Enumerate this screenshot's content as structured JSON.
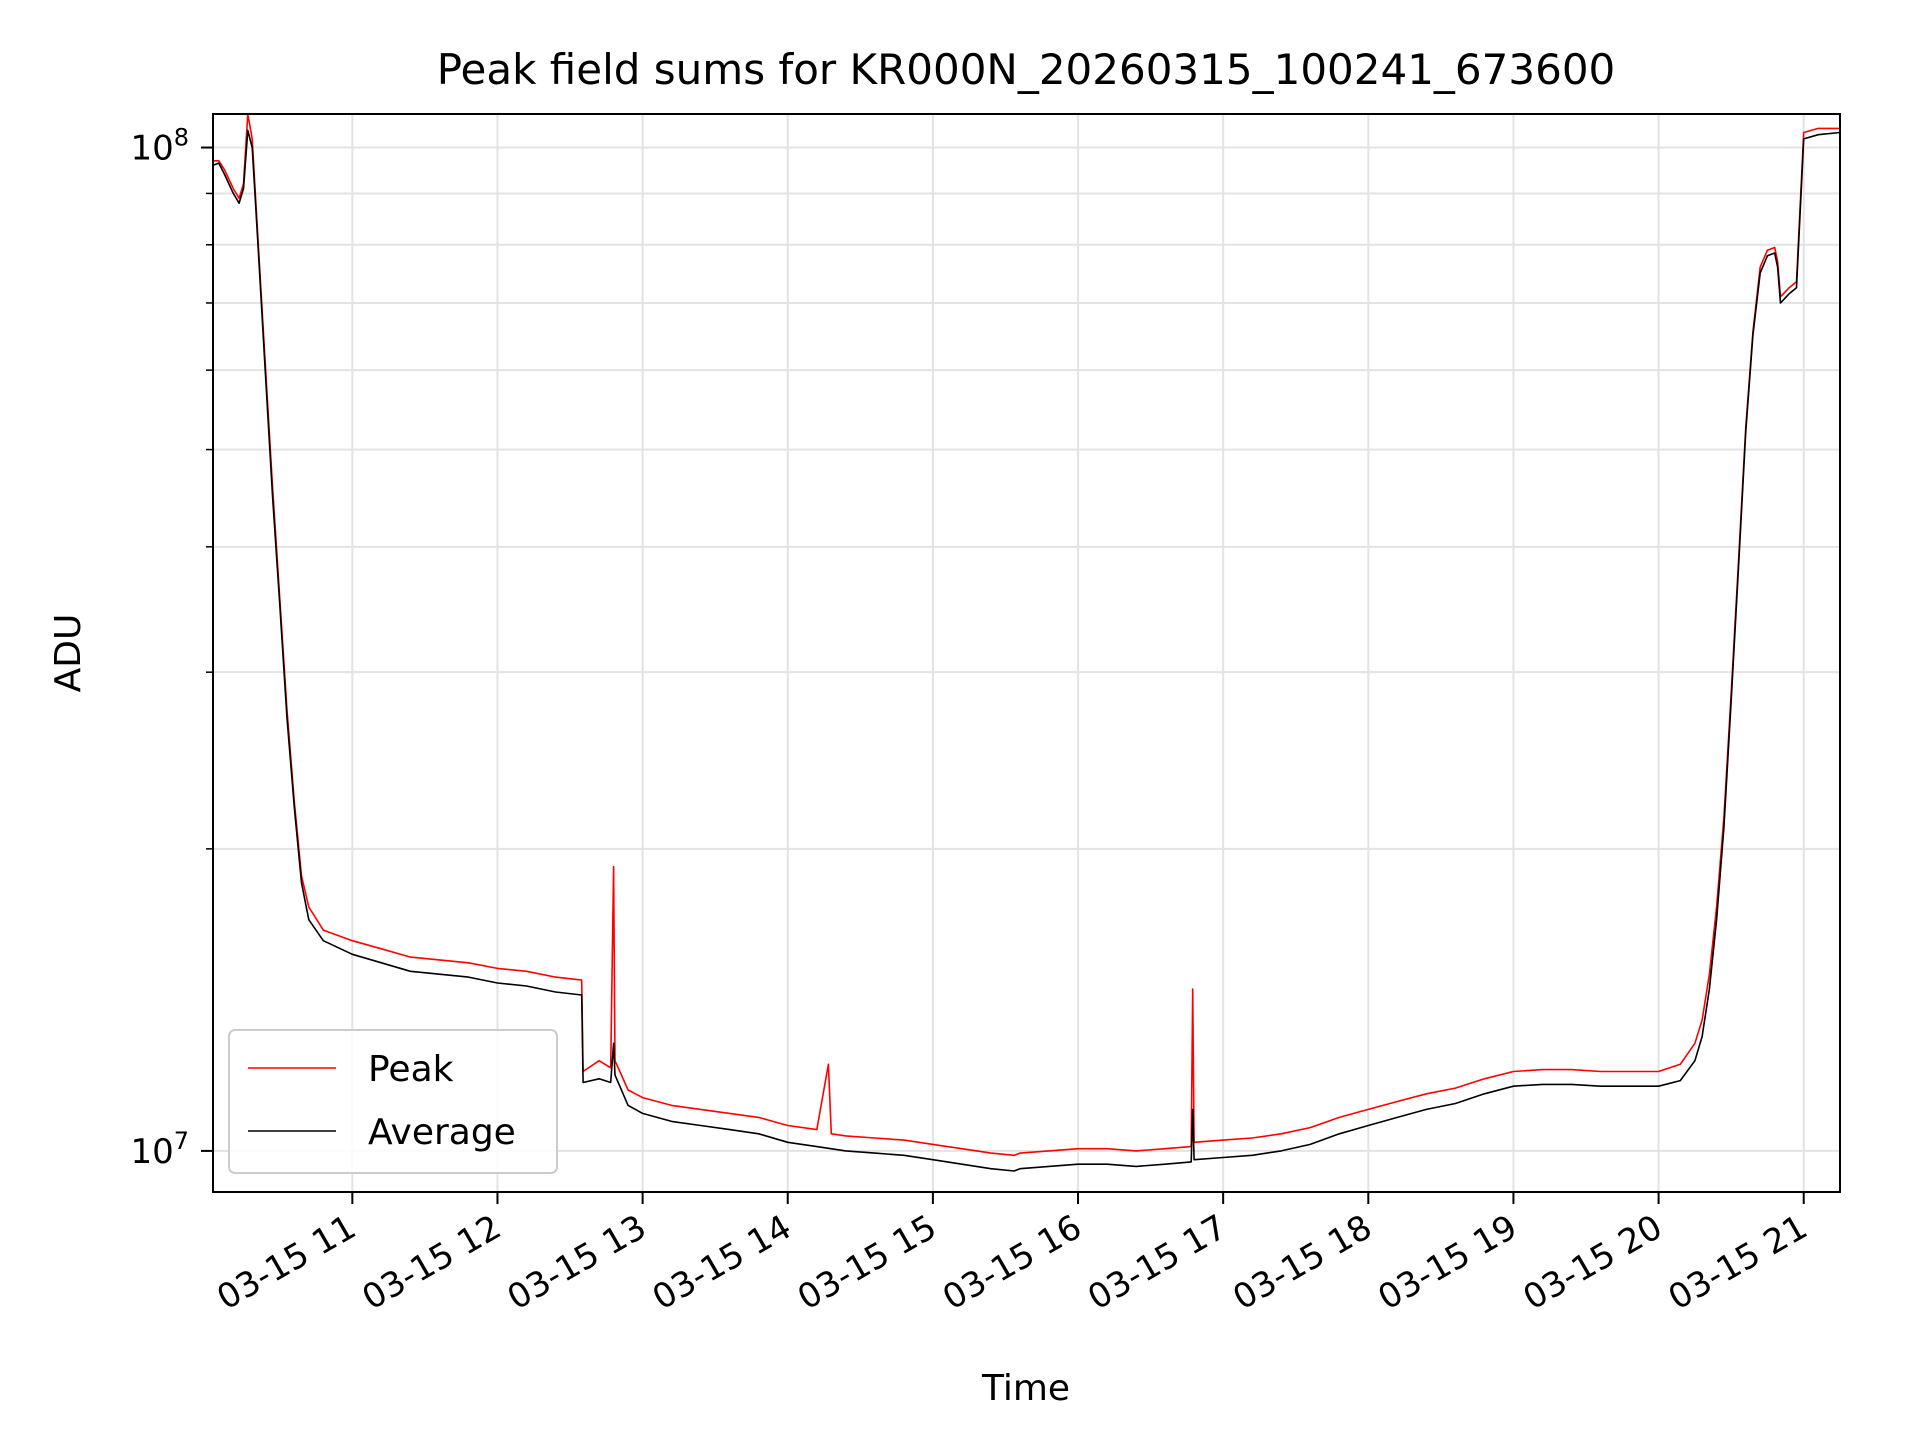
{
  "chart_data": {
    "type": "line",
    "title": "Peak field sums for KR000N_20260315_100241_673600",
    "xlabel": "Time",
    "ylabel": "ADU",
    "yscale": "log",
    "grid": true,
    "legend_position": "lower-left",
    "x_unit": "hours since 03-15 00:00",
    "xlim": [
      10.04,
      21.25
    ],
    "ylim": [
      9100000,
      108000000
    ],
    "x_ticks": [
      {
        "value": 11,
        "label": "03-15 11"
      },
      {
        "value": 12,
        "label": "03-15 12"
      },
      {
        "value": 13,
        "label": "03-15 13"
      },
      {
        "value": 14,
        "label": "03-15 14"
      },
      {
        "value": 15,
        "label": "03-15 15"
      },
      {
        "value": 16,
        "label": "03-15 16"
      },
      {
        "value": 17,
        "label": "03-15 17"
      },
      {
        "value": 18,
        "label": "03-15 18"
      },
      {
        "value": 19,
        "label": "03-15 19"
      },
      {
        "value": 20,
        "label": "03-15 20"
      },
      {
        "value": 21,
        "label": "03-15 21"
      }
    ],
    "y_ticks": [
      {
        "value": 10000000,
        "base": "10",
        "exp": "7"
      },
      {
        "value": 100000000,
        "base": "10",
        "exp": "8"
      }
    ],
    "y_minor_ticks": [
      20000000,
      30000000,
      40000000,
      50000000,
      60000000,
      70000000,
      80000000,
      90000000
    ],
    "series": [
      {
        "name": "Average",
        "color": "#000000",
        "points": [
          [
            10.04,
            96000000
          ],
          [
            10.08,
            96500000
          ],
          [
            10.12,
            94000000
          ],
          [
            10.18,
            90000000
          ],
          [
            10.22,
            88000000
          ],
          [
            10.25,
            91000000
          ],
          [
            10.28,
            104000000
          ],
          [
            10.31,
            100000000
          ],
          [
            10.35,
            80000000
          ],
          [
            10.4,
            60000000
          ],
          [
            10.45,
            45000000
          ],
          [
            10.5,
            35000000
          ],
          [
            10.55,
            27000000
          ],
          [
            10.6,
            22000000
          ],
          [
            10.65,
            18500000
          ],
          [
            10.7,
            17000000
          ],
          [
            10.8,
            16200000
          ],
          [
            11.0,
            15700000
          ],
          [
            11.2,
            15400000
          ],
          [
            11.4,
            15100000
          ],
          [
            11.6,
            15000000
          ],
          [
            11.8,
            14900000
          ],
          [
            12.0,
            14700000
          ],
          [
            12.2,
            14600000
          ],
          [
            12.4,
            14400000
          ],
          [
            12.58,
            14300000
          ],
          [
            12.59,
            11700000
          ],
          [
            12.7,
            11800000
          ],
          [
            12.78,
            11700000
          ],
          [
            12.8,
            12800000
          ],
          [
            12.81,
            11900000
          ],
          [
            12.9,
            11100000
          ],
          [
            13.0,
            10900000
          ],
          [
            13.2,
            10700000
          ],
          [
            13.4,
            10600000
          ],
          [
            13.6,
            10500000
          ],
          [
            13.8,
            10400000
          ],
          [
            14.0,
            10200000
          ],
          [
            14.2,
            10100000
          ],
          [
            14.4,
            10000000
          ],
          [
            14.6,
            9950000
          ],
          [
            14.8,
            9900000
          ],
          [
            15.0,
            9800000
          ],
          [
            15.2,
            9700000
          ],
          [
            15.4,
            9600000
          ],
          [
            15.56,
            9550000
          ],
          [
            15.6,
            9600000
          ],
          [
            15.8,
            9650000
          ],
          [
            16.0,
            9700000
          ],
          [
            16.2,
            9700000
          ],
          [
            16.4,
            9650000
          ],
          [
            16.6,
            9700000
          ],
          [
            16.78,
            9750000
          ],
          [
            16.79,
            11000000
          ],
          [
            16.8,
            9800000
          ],
          [
            17.0,
            9850000
          ],
          [
            17.2,
            9900000
          ],
          [
            17.4,
            10000000
          ],
          [
            17.6,
            10150000
          ],
          [
            17.8,
            10400000
          ],
          [
            18.0,
            10600000
          ],
          [
            18.2,
            10800000
          ],
          [
            18.4,
            11000000
          ],
          [
            18.6,
            11150000
          ],
          [
            18.8,
            11400000
          ],
          [
            19.0,
            11600000
          ],
          [
            19.2,
            11650000
          ],
          [
            19.4,
            11650000
          ],
          [
            19.6,
            11600000
          ],
          [
            19.8,
            11600000
          ],
          [
            20.0,
            11600000
          ],
          [
            20.15,
            11750000
          ],
          [
            20.25,
            12300000
          ],
          [
            20.3,
            13000000
          ],
          [
            20.35,
            14500000
          ],
          [
            20.4,
            17000000
          ],
          [
            20.45,
            21000000
          ],
          [
            20.5,
            28000000
          ],
          [
            20.55,
            38000000
          ],
          [
            20.6,
            52000000
          ],
          [
            20.65,
            65000000
          ],
          [
            20.7,
            75000000
          ],
          [
            20.75,
            78000000
          ],
          [
            20.8,
            78500000
          ],
          [
            20.82,
            76000000
          ],
          [
            20.84,
            70000000
          ],
          [
            20.9,
            71500000
          ],
          [
            20.95,
            72500000
          ],
          [
            21.0,
            102000000
          ],
          [
            21.1,
            103000000
          ],
          [
            21.25,
            103500000
          ]
        ]
      },
      {
        "name": "Peak",
        "color": "#ff0000",
        "points": [
          [
            10.04,
            97000000
          ],
          [
            10.08,
            97000000
          ],
          [
            10.12,
            95000000
          ],
          [
            10.18,
            91000000
          ],
          [
            10.22,
            89000000
          ],
          [
            10.25,
            92000000
          ],
          [
            10.28,
            108000000
          ],
          [
            10.31,
            102000000
          ],
          [
            10.35,
            81000000
          ],
          [
            10.4,
            61000000
          ],
          [
            10.45,
            46000000
          ],
          [
            10.5,
            35500000
          ],
          [
            10.55,
            27500000
          ],
          [
            10.6,
            22300000
          ],
          [
            10.65,
            18800000
          ],
          [
            10.7,
            17500000
          ],
          [
            10.8,
            16600000
          ],
          [
            11.0,
            16200000
          ],
          [
            11.2,
            15900000
          ],
          [
            11.4,
            15600000
          ],
          [
            11.6,
            15500000
          ],
          [
            11.8,
            15400000
          ],
          [
            12.0,
            15200000
          ],
          [
            12.2,
            15100000
          ],
          [
            12.4,
            14900000
          ],
          [
            12.58,
            14800000
          ],
          [
            12.59,
            12000000
          ],
          [
            12.7,
            12300000
          ],
          [
            12.78,
            12100000
          ],
          [
            12.8,
            19200000
          ],
          [
            12.81,
            12300000
          ],
          [
            12.9,
            11500000
          ],
          [
            13.0,
            11300000
          ],
          [
            13.2,
            11100000
          ],
          [
            13.4,
            11000000
          ],
          [
            13.6,
            10900000
          ],
          [
            13.8,
            10800000
          ],
          [
            14.0,
            10600000
          ],
          [
            14.2,
            10500000
          ],
          [
            14.28,
            12200000
          ],
          [
            14.3,
            10400000
          ],
          [
            14.4,
            10350000
          ],
          [
            14.6,
            10300000
          ],
          [
            14.8,
            10250000
          ],
          [
            15.0,
            10150000
          ],
          [
            15.2,
            10050000
          ],
          [
            15.4,
            9950000
          ],
          [
            15.56,
            9900000
          ],
          [
            15.6,
            9950000
          ],
          [
            15.8,
            10000000
          ],
          [
            16.0,
            10050000
          ],
          [
            16.2,
            10050000
          ],
          [
            16.4,
            10000000
          ],
          [
            16.6,
            10050000
          ],
          [
            16.78,
            10100000
          ],
          [
            16.79,
            14500000
          ],
          [
            16.8,
            10200000
          ],
          [
            17.0,
            10250000
          ],
          [
            17.2,
            10300000
          ],
          [
            17.4,
            10400000
          ],
          [
            17.6,
            10550000
          ],
          [
            17.8,
            10800000
          ],
          [
            18.0,
            11000000
          ],
          [
            18.2,
            11200000
          ],
          [
            18.4,
            11400000
          ],
          [
            18.6,
            11550000
          ],
          [
            18.8,
            11800000
          ],
          [
            19.0,
            12000000
          ],
          [
            19.2,
            12050000
          ],
          [
            19.4,
            12050000
          ],
          [
            19.6,
            12000000
          ],
          [
            19.8,
            12000000
          ],
          [
            20.0,
            12000000
          ],
          [
            20.15,
            12200000
          ],
          [
            20.25,
            12800000
          ],
          [
            20.3,
            13500000
          ],
          [
            20.35,
            15000000
          ],
          [
            20.4,
            17500000
          ],
          [
            20.45,
            21500000
          ],
          [
            20.5,
            28500000
          ],
          [
            20.55,
            38500000
          ],
          [
            20.6,
            52500000
          ],
          [
            20.65,
            65500000
          ],
          [
            20.7,
            76000000
          ],
          [
            20.75,
            79000000
          ],
          [
            20.8,
            79500000
          ],
          [
            20.82,
            77000000
          ],
          [
            20.84,
            71000000
          ],
          [
            20.9,
            72500000
          ],
          [
            20.95,
            73500000
          ],
          [
            21.0,
            103500000
          ],
          [
            21.1,
            104500000
          ],
          [
            21.25,
            104500000
          ]
        ]
      }
    ]
  }
}
